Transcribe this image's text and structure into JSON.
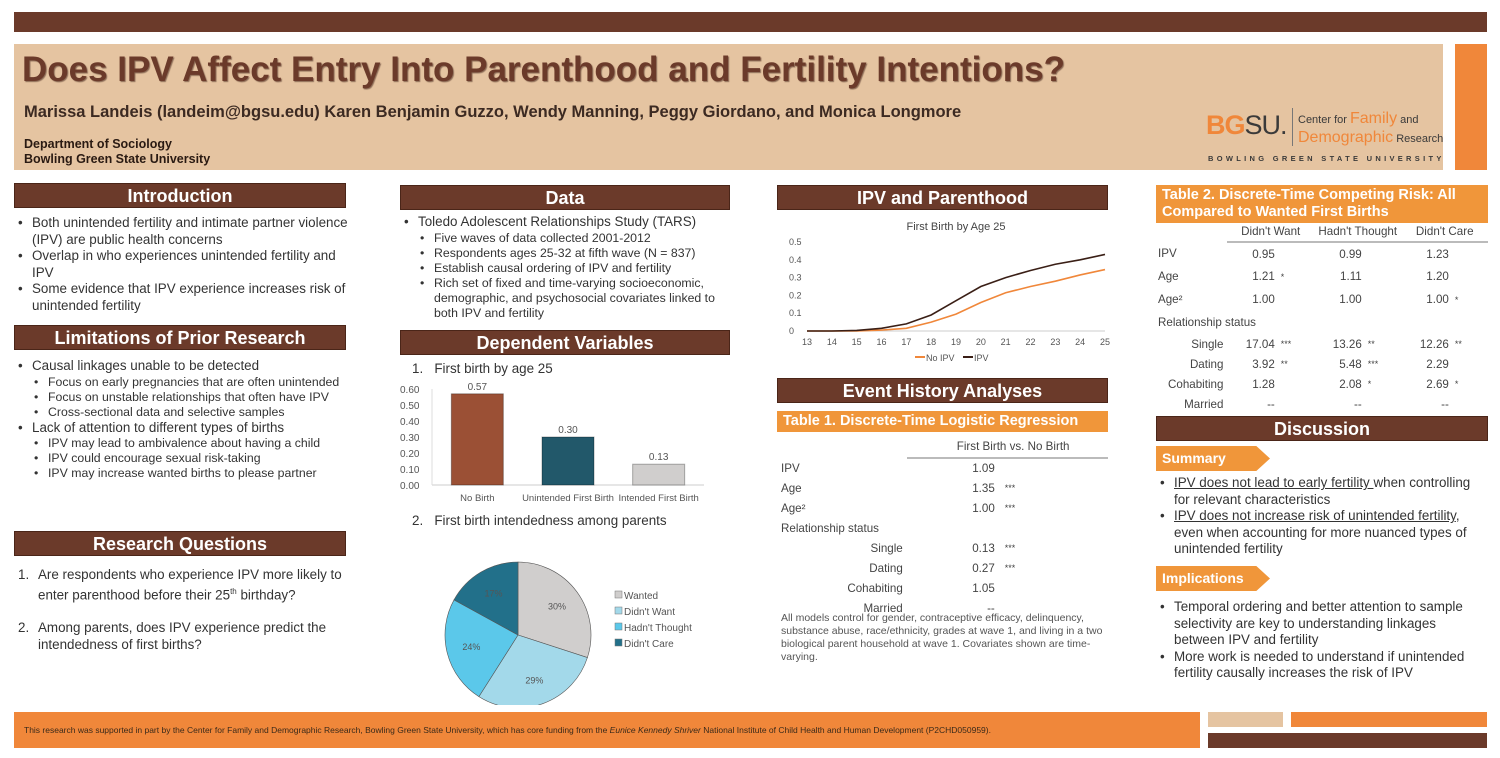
{
  "header": {
    "title": "Does IPV Affect Entry Into Parenthood and Fertility Intentions?",
    "authors": "Marissa Landeis (landeim@bgsu.edu) Karen Benjamin Guzzo, Wendy Manning, Peggy Giordano, and Monica Longmore",
    "dept_line1": "Department of Sociology",
    "dept_line2": "Bowling Green State University",
    "logo": {
      "bg": "BG",
      "su": "SU.",
      "center_for": "Center for",
      "family": "Family",
      "and": "and",
      "demographic": "Demographic",
      "research": "Research",
      "university": "BOWLING GREEN STATE UNIVERSITY"
    }
  },
  "introduction": {
    "title": "Introduction",
    "bullets": [
      "Both unintended fertility and intimate partner violence (IPV) are public health concerns",
      "Overlap in who experiences unintended fertility and IPV",
      "Some evidence that IPV experience increases risk of unintended fertility"
    ]
  },
  "limitations": {
    "title": "Limitations of Prior Research",
    "items": [
      {
        "text": "Causal linkages unable to be detected",
        "sub": false
      },
      {
        "text": "Focus on early pregnancies that are often unintended",
        "sub": true
      },
      {
        "text": "Focus on unstable relationships that often have IPV",
        "sub": true
      },
      {
        "text": "Cross-sectional data and selective samples",
        "sub": true
      },
      {
        "text": "Lack of attention to different types of births",
        "sub": false
      },
      {
        "text": "IPV may lead to ambivalence about having a child",
        "sub": true
      },
      {
        "text": "IPV could encourage sexual risk-taking",
        "sub": true
      },
      {
        "text": "IPV may increase wanted births to please partner",
        "sub": true
      }
    ]
  },
  "research_questions": {
    "title": "Research Questions",
    "q1_num": "1.",
    "q1_a": "Are respondents who experience IPV more likely to enter parenthood before their 25",
    "q1_sup": "th",
    "q1_b": " birthday?",
    "q2_num": "2.",
    "q2": "Among parents, does IPV experience predict the intendedness of first births?"
  },
  "data_section": {
    "title": "Data",
    "items": [
      {
        "text": "Toledo Adolescent Relationships Study (TARS)",
        "sub": false
      },
      {
        "text": "Five waves of data collected 2001-2012",
        "sub": true
      },
      {
        "text": "Respondents ages 25-32 at fifth wave (N = 837)",
        "sub": true
      },
      {
        "text": "Establish causal ordering of IPV and fertility",
        "sub": true
      },
      {
        "text": "Rich set of fixed and time-varying socioeconomic, demographic, and psychosocial covariates linked to both IPV and fertility",
        "sub": true
      }
    ]
  },
  "dependent": {
    "title": "Dependent Variables",
    "item1": "1.   First birth by age 25",
    "item2": "2.   First birth intendedness among parents"
  },
  "ipv_parenthood": {
    "title": "IPV and Parenthood"
  },
  "event_history": {
    "title": "Event History Analyses"
  },
  "chart_data": [
    {
      "type": "line",
      "title": "First Birth by Age 25",
      "xlabel": "",
      "ylabel": "",
      "x": [
        13,
        14,
        15,
        16,
        17,
        18,
        19,
        20,
        21,
        22,
        23,
        24,
        25
      ],
      "xlim": [
        13,
        25
      ],
      "ylim": [
        0,
        0.5
      ],
      "yticks": [
        "0",
        "0.1",
        "0.2",
        "0.3",
        "0.4",
        "0.5"
      ],
      "legend": "bottom",
      "grid": false,
      "series": [
        {
          "name": "No IPV",
          "color": "#f0873a",
          "values": [
            0,
            0,
            0,
            0.005,
            0.015,
            0.05,
            0.095,
            0.16,
            0.215,
            0.25,
            0.28,
            0.315,
            0.345
          ]
        },
        {
          "name": "IPV",
          "color": "#3a1f16",
          "values": [
            0,
            0,
            0.003,
            0.015,
            0.04,
            0.09,
            0.17,
            0.25,
            0.3,
            0.34,
            0.375,
            0.4,
            0.43
          ]
        }
      ]
    },
    {
      "type": "bar",
      "categories": [
        "No Birth",
        "Unintended First Birth",
        "Intended First Birth"
      ],
      "values": [
        0.57,
        0.3,
        0.13
      ],
      "labels": [
        "0.57",
        "0.30",
        "0.13"
      ],
      "colors": [
        "#9b5035",
        "#22586a",
        "#d0cecd"
      ],
      "ylim": [
        0,
        0.6
      ],
      "yticks": [
        "0.00",
        "0.10",
        "0.20",
        "0.30",
        "0.40",
        "0.50",
        "0.60"
      ],
      "grid": false
    },
    {
      "type": "pie",
      "categories": [
        "Wanted",
        "Didn't Want",
        "Hadn't Thought",
        "Didn't Care"
      ],
      "values": [
        30,
        29,
        24,
        17
      ],
      "labels": [
        "30%",
        "29%",
        "24%",
        "17%"
      ],
      "colors": [
        "#d0cecd",
        "#a3d9ea",
        "#5bc8ea",
        "#22708a"
      ],
      "legend": "right"
    }
  ],
  "table1": {
    "title": "Table 1. Discrete-Time Logistic Regression",
    "col_header": "First Birth vs.  No Birth",
    "rows": [
      {
        "label": "IPV",
        "indent": false,
        "v": "1.09",
        "s": ""
      },
      {
        "label": "Age",
        "indent": false,
        "v": "1.35",
        "s": "***"
      },
      {
        "label": "Age²",
        "indent": false,
        "v": "1.00",
        "s": "***"
      },
      {
        "label": "Relationship status",
        "indent": false,
        "v": "",
        "s": ""
      },
      {
        "label": "Single",
        "indent": true,
        "v": "0.13",
        "s": "***"
      },
      {
        "label": "Dating",
        "indent": true,
        "v": "0.27",
        "s": "***"
      },
      {
        "label": "Cohabiting",
        "indent": true,
        "v": "1.05",
        "s": ""
      },
      {
        "label": "Married",
        "indent": true,
        "v": "--",
        "s": ""
      }
    ],
    "note": "All models control for gender, contraceptive efficacy, delinquency, substance abuse, race/ethnicity, grades at wave 1, and living in a two biological parent household at wave 1. Covariates shown are time-varying."
  },
  "table2": {
    "title": "Table 2. Discrete-Time Competing Risk: All Compared to Wanted First Births",
    "columns": [
      "Didn't Want",
      "Hadn't Thought",
      "Didn't Care"
    ],
    "rows": [
      {
        "label": "IPV",
        "indent": false,
        "cells": [
          [
            "0.95",
            ""
          ],
          [
            "0.99",
            ""
          ],
          [
            "1.23",
            ""
          ]
        ]
      },
      {
        "label": "Age",
        "indent": false,
        "cells": [
          [
            "1.21",
            "*"
          ],
          [
            "1.11",
            ""
          ],
          [
            "1.20",
            ""
          ]
        ]
      },
      {
        "label": "Age²",
        "indent": false,
        "cells": [
          [
            "1.00",
            ""
          ],
          [
            "1.00",
            ""
          ],
          [
            "1.00",
            "*"
          ]
        ]
      },
      {
        "label": "Relationship status",
        "indent": false,
        "cells": []
      },
      {
        "label": "Single",
        "indent": true,
        "cells": [
          [
            "17.04",
            "***"
          ],
          [
            "13.26",
            "**"
          ],
          [
            "12.26",
            "**"
          ]
        ]
      },
      {
        "label": "Dating",
        "indent": true,
        "cells": [
          [
            "3.92",
            "**"
          ],
          [
            "5.48",
            "***"
          ],
          [
            "2.29",
            ""
          ]
        ]
      },
      {
        "label": "Cohabiting",
        "indent": true,
        "cells": [
          [
            "1.28",
            ""
          ],
          [
            "2.08",
            "*"
          ],
          [
            "2.69",
            "*"
          ]
        ]
      },
      {
        "label": "Married",
        "indent": true,
        "cells": [
          [
            "--",
            ""
          ],
          [
            "--",
            ""
          ],
          [
            "--",
            ""
          ]
        ]
      }
    ]
  },
  "discussion": {
    "title": "Discussion",
    "summary_label": "Summary",
    "s1_u": "IPV does not lead to early fertility ",
    "s1_rest": "when controlling for relevant characteristics",
    "s2_u": "IPV does not increase risk of unintended fertility",
    "s2_rest": ", even when accounting for more nuanced types of unintended fertility",
    "implications_label": "Implications",
    "implications": [
      "Temporal ordering and better attention to sample selectivity are key to understanding linkages between IPV and fertility",
      "More work is needed to understand if unintended fertility causally increases the risk of IPV"
    ]
  },
  "footer": {
    "text_a": "This research was supported in part by the Center for Family and Demographic Research, Bowling Green State University, which has core funding from the ",
    "text_em": "Eunice Kennedy Shriver",
    "text_b": " National Institute of Child Health and Human Development (P2CHD050959)."
  },
  "colors": {
    "brown": "#6b3a2a",
    "orange": "#f0873a",
    "beige": "#e5c4a1"
  }
}
